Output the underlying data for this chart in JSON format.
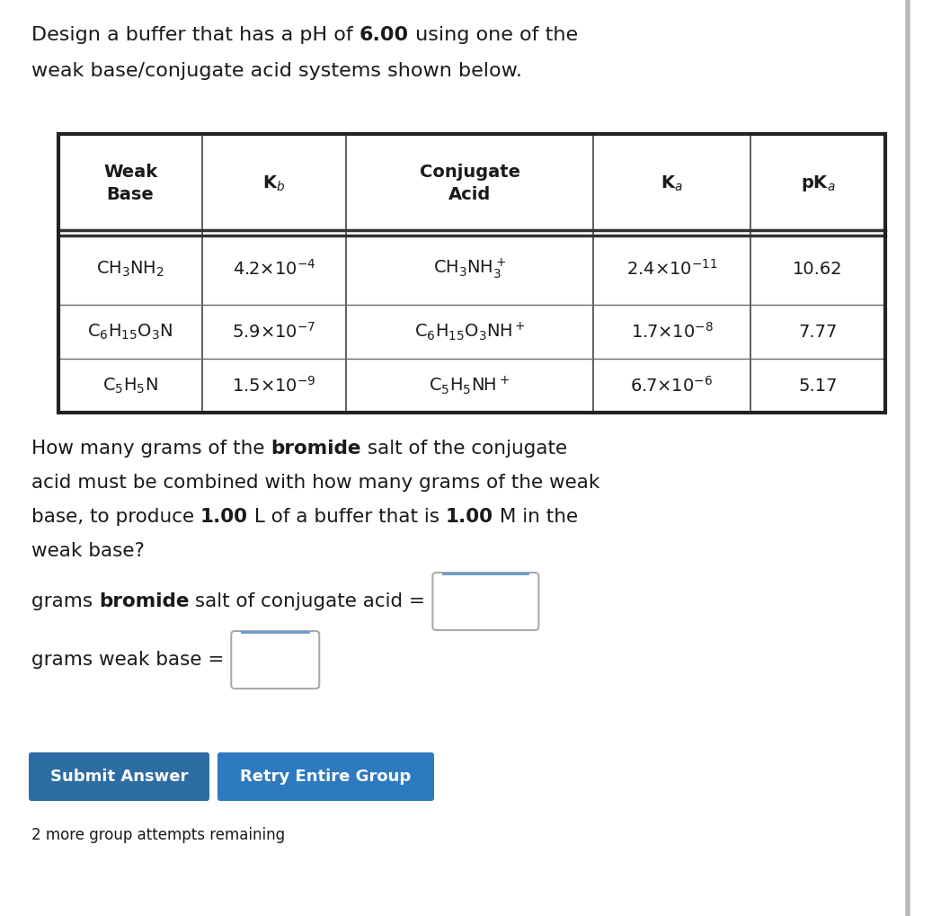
{
  "bg_color": "#ffffff",
  "text_color": "#1a1a1a",
  "title_parts": [
    [
      "Design a buffer that has a pH of ",
      false
    ],
    [
      "6.00",
      true
    ],
    [
      " using one of the",
      false
    ]
  ],
  "title_line2": "weak base/conjugate acid systems shown below.",
  "header_labels": [
    "Weak\nBase",
    "K$_b$",
    "Conjugate\nAcid",
    "K$_a$",
    "pK$_a$"
  ],
  "row1": [
    "CH$_3$NH$_2$",
    "4.2×10$^{-4}$",
    "CH$_3$NH$_3^+$",
    "2.4×10$^{-11}$",
    "10.62"
  ],
  "row2": [
    "C$_6$H$_{15}$O$_3$N",
    "5.9×10$^{-7}$",
    "C$_6$H$_{15}$O$_3$NH$^+$",
    "1.7×10$^{-8}$",
    "7.77"
  ],
  "row3": [
    "C$_5$H$_5$N",
    "1.5×10$^{-9}$",
    "C$_5$H$_5$NH$^+$",
    "6.7×10$^{-6}$",
    "5.17"
  ],
  "q_line1": [
    [
      "How many grams of the ",
      false
    ],
    [
      "bromide",
      true
    ],
    [
      " salt of the conjugate",
      false
    ]
  ],
  "q_line2": [
    [
      "acid must be combined with how many grams of the weak",
      false
    ]
  ],
  "q_line3": [
    [
      "base, to produce ",
      false
    ],
    [
      "1.00",
      true
    ],
    [
      " L of a buffer that is ",
      false
    ],
    [
      "1.00",
      true
    ],
    [
      " M in the",
      false
    ]
  ],
  "q_line4": [
    [
      "weak base?",
      false
    ]
  ],
  "inp_line1": [
    [
      "grams ",
      false
    ],
    [
      "bromide",
      true
    ],
    [
      " salt of conjugate acid = ",
      false
    ]
  ],
  "inp_line2": [
    [
      "grams weak base = ",
      false
    ]
  ],
  "button1_text": "Submit Answer",
  "button1_color": "#2e6da4",
  "button2_text": "Retry Entire Group",
  "button2_color": "#2e7abf",
  "footer_text": "2 more group attempts remaining"
}
